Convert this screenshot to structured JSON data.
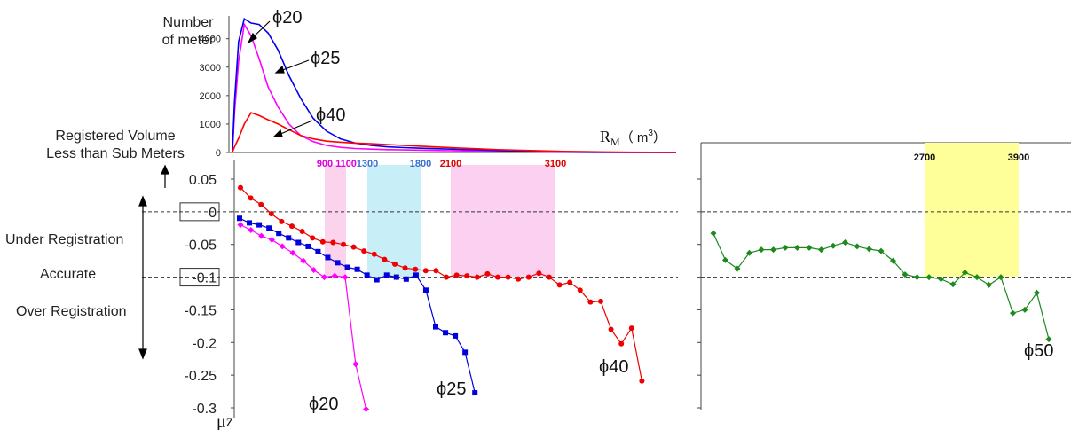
{
  "chart_data": [
    {
      "type": "line",
      "ylabel": "Number\nof meter",
      "xlabel": "R",
      "xlabel_sub": "M",
      "xlabel_unit": "（ m",
      "xlabel_unit_sup": "3",
      "xlabel_unit_close": "）",
      "yticks": [
        "0",
        "1000",
        "2000",
        "3000",
        "4000"
      ],
      "ylim": [
        0,
        4800
      ],
      "series": [
        {
          "name": "ϕ20",
          "color": "#ff00ff",
          "values": [
            50,
            1400,
            3200,
            4500,
            4100,
            3300,
            2300,
            1600,
            1000,
            600,
            380,
            250,
            180,
            140,
            120,
            100,
            90,
            80,
            70,
            60,
            50,
            40,
            30,
            20,
            10,
            5,
            3,
            2,
            1,
            0
          ]
        },
        {
          "name": "ϕ25",
          "color": "#0000ee",
          "values": [
            100,
            1800,
            3900,
            4700,
            4550,
            4500,
            4200,
            3600,
            2700,
            1900,
            1200,
            750,
            480,
            330,
            250,
            200,
            170,
            150,
            130,
            110,
            90,
            70,
            50,
            35,
            20,
            10,
            5,
            3,
            1,
            0
          ]
        },
        {
          "name": "ϕ40",
          "color": "#ff0000",
          "values": [
            20,
            200,
            500,
            1000,
            1400,
            1300,
            1150,
            1000,
            800,
            600,
            480,
            400,
            360,
            330,
            310,
            280,
            250,
            220,
            190,
            160,
            130,
            100,
            80,
            60,
            40,
            30,
            20,
            10,
            5,
            0
          ]
        }
      ],
      "annotations": [
        {
          "text": "ϕ20"
        },
        {
          "text": "ϕ25"
        },
        {
          "text": "ϕ40"
        }
      ]
    },
    {
      "type": "line",
      "ylabel": "μ",
      "ylabel_sub": "Z",
      "yticks": [
        "0.05",
        "0",
        "-0.05",
        "-0.1",
        "-0.15",
        "-0.2",
        "-0.25",
        "-0.3"
      ],
      "ylim": [
        -0.3,
        0.05
      ],
      "boxed_ticks": [
        "0",
        "-0.1"
      ],
      "reference_lines": [
        0,
        -0.1
      ],
      "regions": [
        {
          "from": 900,
          "to": 1100,
          "color": "#fbd3ec",
          "from_label": "900",
          "to_label": "1100",
          "label_color": "#e000e0"
        },
        {
          "from": 1300,
          "to": 1800,
          "color": "#c8eef8",
          "from_label": "1300",
          "to_label": "1800",
          "label_color": "#3a6fd0"
        },
        {
          "from": 2100,
          "to": 3100,
          "color": "#fcd0f0",
          "from_label": "2100",
          "to_label": "3100",
          "label_color": "#e00000"
        }
      ],
      "side_labels": {
        "registered": "Registered Volume\nLess than Sub Meters",
        "under": "Under Registration",
        "accurate": "Accurate",
        "over": "Over Registration"
      },
      "series": [
        {
          "name": "ϕ20",
          "color": "#ff00ff",
          "marker": "diamond",
          "points": [
            [
              0,
              -0.02
            ],
            [
              1,
              -0.028
            ],
            [
              2,
              -0.037
            ],
            [
              3,
              -0.043
            ],
            [
              4,
              -0.053
            ],
            [
              5,
              -0.063
            ],
            [
              6,
              -0.075
            ],
            [
              7,
              -0.089
            ],
            [
              8,
              -0.1
            ],
            [
              9,
              -0.098
            ],
            [
              10,
              -0.1
            ],
            [
              11,
              -0.233
            ],
            [
              12,
              -0.302
            ]
          ]
        },
        {
          "name": "ϕ25",
          "color": "#0000dd",
          "marker": "square",
          "points": [
            [
              0,
              -0.01
            ],
            [
              1,
              -0.017
            ],
            [
              2,
              -0.02
            ],
            [
              3,
              -0.025
            ],
            [
              4,
              -0.033
            ],
            [
              5,
              -0.04
            ],
            [
              6,
              -0.047
            ],
            [
              7,
              -0.053
            ],
            [
              8,
              -0.061
            ],
            [
              9,
              -0.07
            ],
            [
              10,
              -0.078
            ],
            [
              11,
              -0.085
            ],
            [
              12,
              -0.088
            ],
            [
              13,
              -0.097
            ],
            [
              14,
              -0.104
            ],
            [
              15,
              -0.097
            ],
            [
              16,
              -0.1
            ],
            [
              17,
              -0.103
            ],
            [
              18,
              -0.097
            ],
            [
              19,
              -0.12
            ],
            [
              20,
              -0.176
            ],
            [
              21,
              -0.185
            ],
            [
              22,
              -0.19
            ],
            [
              23,
              -0.215
            ],
            [
              24,
              -0.277
            ]
          ]
        },
        {
          "name": "ϕ40",
          "color": "#ee0000",
          "marker": "circle",
          "points": [
            [
              0,
              0.037
            ],
            [
              1,
              0.021
            ],
            [
              2,
              0.011
            ],
            [
              3,
              -0.003
            ],
            [
              4,
              -0.015
            ],
            [
              5,
              -0.022
            ],
            [
              6,
              -0.03
            ],
            [
              7,
              -0.04
            ],
            [
              8,
              -0.046
            ],
            [
              9,
              -0.047
            ],
            [
              10,
              -0.05
            ],
            [
              11,
              -0.054
            ],
            [
              12,
              -0.06
            ],
            [
              13,
              -0.065
            ],
            [
              14,
              -0.073
            ],
            [
              15,
              -0.08
            ],
            [
              16,
              -0.086
            ],
            [
              17,
              -0.088
            ],
            [
              18,
              -0.09
            ],
            [
              19,
              -0.09
            ],
            [
              20,
              -0.1
            ],
            [
              21,
              -0.097
            ],
            [
              22,
              -0.098
            ],
            [
              23,
              -0.1
            ],
            [
              24,
              -0.095
            ],
            [
              25,
              -0.1
            ],
            [
              26,
              -0.1
            ],
            [
              27,
              -0.103
            ],
            [
              28,
              -0.1
            ],
            [
              29,
              -0.094
            ],
            [
              30,
              -0.1
            ],
            [
              31,
              -0.112
            ],
            [
              32,
              -0.108
            ],
            [
              33,
              -0.12
            ],
            [
              34,
              -0.138
            ],
            [
              35,
              -0.137
            ],
            [
              36,
              -0.18
            ],
            [
              37,
              -0.202
            ],
            [
              38,
              -0.178
            ],
            [
              39,
              -0.259
            ]
          ]
        }
      ],
      "series_labels": [
        "ϕ20",
        "ϕ25",
        "ϕ40"
      ]
    },
    {
      "type": "line",
      "ylim": [
        -0.3,
        0.05
      ],
      "reference_lines": [
        0,
        -0.1
      ],
      "regions": [
        {
          "from": 2700,
          "to": 3900,
          "color": "#ffff99",
          "from_label": "2700",
          "to_label": "3900",
          "label_color": "#111111"
        }
      ],
      "series": [
        {
          "name": "ϕ50",
          "color": "#1e8a1e",
          "marker": "diamond",
          "points": [
            [
              0,
              -0.033
            ],
            [
              1,
              -0.074
            ],
            [
              2,
              -0.087
            ],
            [
              3,
              -0.063
            ],
            [
              4,
              -0.058
            ],
            [
              5,
              -0.058
            ],
            [
              6,
              -0.055
            ],
            [
              7,
              -0.055
            ],
            [
              8,
              -0.055
            ],
            [
              9,
              -0.058
            ],
            [
              10,
              -0.052
            ],
            [
              11,
              -0.047
            ],
            [
              12,
              -0.053
            ],
            [
              13,
              -0.057
            ],
            [
              14,
              -0.06
            ],
            [
              15,
              -0.075
            ],
            [
              16,
              -0.096
            ],
            [
              17,
              -0.1
            ],
            [
              18,
              -0.1
            ],
            [
              19,
              -0.103
            ],
            [
              20,
              -0.111
            ],
            [
              21,
              -0.093
            ],
            [
              22,
              -0.1
            ],
            [
              23,
              -0.112
            ],
            [
              24,
              -0.1
            ],
            [
              25,
              -0.155
            ],
            [
              26,
              -0.15
            ],
            [
              27,
              -0.124
            ],
            [
              28,
              -0.195
            ]
          ]
        }
      ],
      "series_labels": [
        "ϕ50"
      ]
    }
  ]
}
